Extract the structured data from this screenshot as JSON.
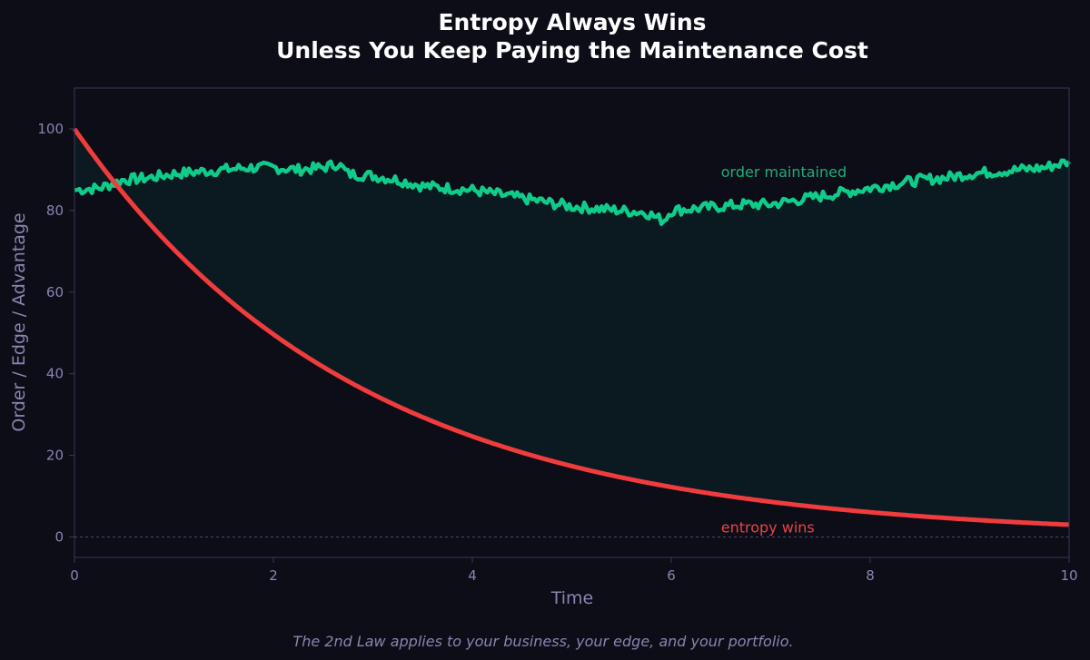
{
  "chart_data": {
    "type": "line",
    "title_line1": "Entropy Always Wins",
    "title_line2": "Unless You Keep Paying the Maintenance Cost",
    "xlabel": "Time",
    "ylabel": "Order / Edge / Advantage",
    "xlim": [
      0,
      10
    ],
    "ylim": [
      -5,
      110
    ],
    "xticks": [
      "0",
      "2",
      "4",
      "6",
      "8",
      "10"
    ],
    "yticks": [
      "0",
      "20",
      "40",
      "60",
      "80",
      "100"
    ],
    "xtick_values": [
      0,
      2,
      4,
      6,
      8,
      10
    ],
    "ytick_values": [
      0,
      20,
      40,
      60,
      80,
      100
    ],
    "baseline": 0,
    "grid": false,
    "series": [
      {
        "name": "order maintained",
        "color": "#10cc8a",
        "x": [
          0,
          0.25,
          0.5,
          0.75,
          1,
          1.25,
          1.5,
          1.75,
          2,
          2.25,
          2.5,
          2.65,
          2.75,
          3,
          3.25,
          3.5,
          3.75,
          4,
          4.25,
          4.5,
          4.75,
          5,
          5.25,
          5.5,
          5.75,
          5.92,
          6,
          6.25,
          6.5,
          6.75,
          7,
          7.25,
          7.5,
          7.75,
          8,
          8.25,
          8.5,
          8.75,
          9,
          9.25,
          9.5,
          9.75,
          10
        ],
        "values": [
          85,
          85.5,
          87.5,
          88,
          89,
          89.5,
          90,
          90.5,
          90.5,
          90,
          90.5,
          91.5,
          89,
          88.5,
          87.5,
          86,
          85.5,
          85,
          84,
          83,
          82,
          81,
          80.5,
          80,
          79.5,
          77.5,
          80,
          80.5,
          81,
          81.5,
          81.5,
          82.5,
          83.5,
          84.5,
          85.5,
          86.5,
          87.5,
          88,
          89,
          89.5,
          90,
          90.5,
          92
        ]
      },
      {
        "name": "entropy wins",
        "color": "#f03c3c",
        "decay_rate": 0.35,
        "x": [
          0,
          0.25,
          0.5,
          0.75,
          1,
          1.25,
          1.5,
          1.75,
          2,
          2.25,
          2.5,
          2.75,
          3,
          3.25,
          3.5,
          3.75,
          4,
          4.25,
          4.5,
          4.75,
          5,
          5.25,
          5.5,
          5.75,
          6,
          6.25,
          6.5,
          6.75,
          7,
          7.25,
          7.5,
          7.75,
          8,
          8.25,
          8.5,
          8.75,
          9,
          9.25,
          9.5,
          9.75,
          10
        ],
        "values": [
          100,
          91.6,
          83.9,
          76.9,
          70.5,
          64.6,
          59.2,
          54.2,
          49.7,
          45.5,
          41.7,
          38.2,
          35.0,
          32.1,
          29.4,
          26.9,
          24.7,
          22.6,
          20.7,
          19.0,
          17.4,
          15.9,
          14.6,
          13.4,
          12.2,
          11.2,
          10.3,
          9.4,
          8.6,
          7.9,
          7.2,
          6.6,
          6.1,
          5.6,
          5.1,
          4.7,
          4.3,
          3.9,
          3.6,
          3.3,
          3.0
        ]
      }
    ],
    "annotations": [
      {
        "text": "order maintained",
        "x": 6.5,
        "y": 89.5,
        "color": "#1fae7a"
      },
      {
        "text": "entropy wins",
        "x": 6.5,
        "y": 2.5,
        "color": "#e84444"
      }
    ],
    "caption": "The 2nd Law applies to your business, your edge, and your portfolio.",
    "colors": {
      "background": "#0d0d18",
      "fill": "#0b1a20",
      "axis": "#3a3858",
      "tick_text": "#8a84b0",
      "baseline": "#4a4670"
    }
  }
}
